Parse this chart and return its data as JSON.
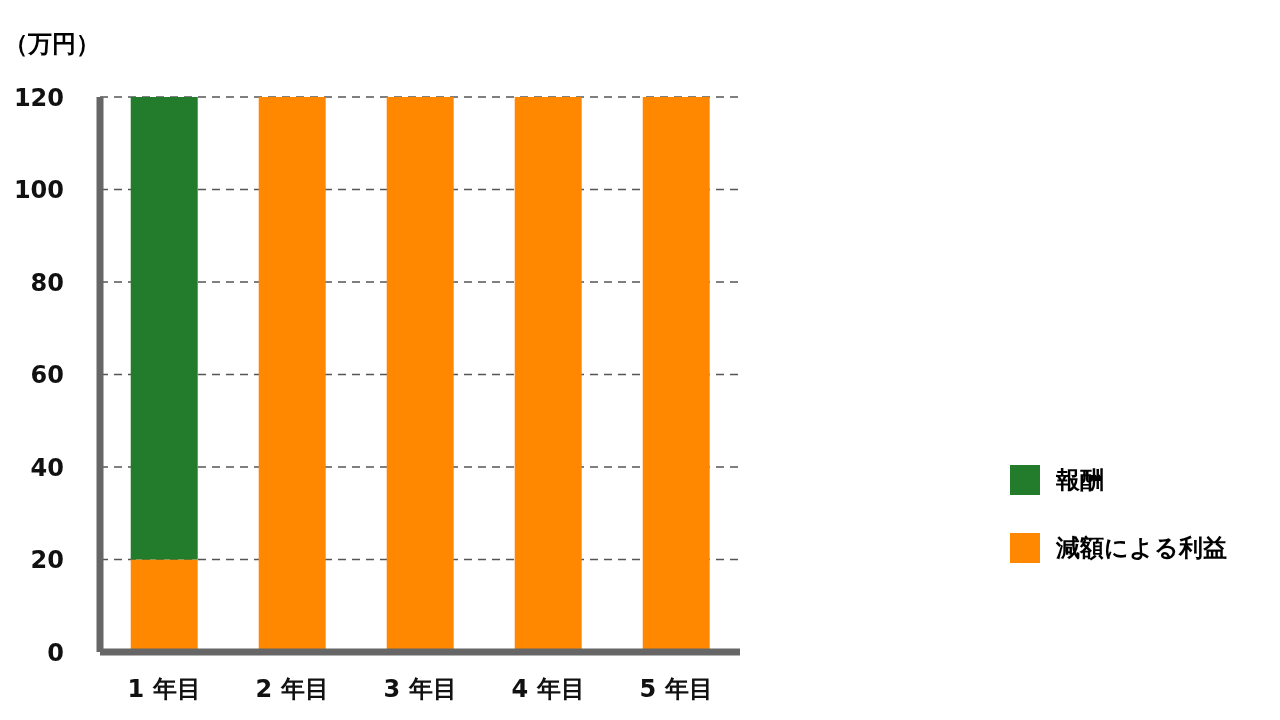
{
  "chart_data": {
    "type": "bar",
    "stacked": true,
    "ylabel": "（万円）",
    "categories": [
      "1 年目",
      "2 年目",
      "3 年目",
      "4 年目",
      "5 年目"
    ],
    "series": [
      {
        "name": "減額による利益",
        "color": "#ff8800",
        "values": [
          20,
          120,
          120,
          120,
          120
        ]
      },
      {
        "name": "報酬",
        "color": "#237b2c",
        "values": [
          100,
          0,
          0,
          0,
          0
        ]
      }
    ],
    "ylim": [
      0,
      120
    ],
    "yticks": [
      0,
      20,
      40,
      60,
      80,
      100,
      120
    ],
    "grid": "y",
    "legend": "bottom right"
  }
}
